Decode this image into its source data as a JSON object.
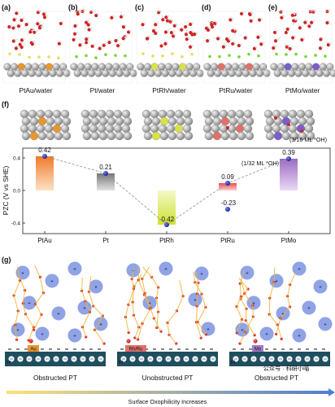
{
  "panels": {
    "a": {
      "letter": "(a)",
      "caption": "PtAu/water"
    },
    "b": {
      "letter": "(b)",
      "caption": "Pt/water"
    },
    "c": {
      "letter": "(c)",
      "caption": "PtRh/water"
    },
    "d": {
      "letter": "(d)",
      "caption": "PtRu/water"
    },
    "e": {
      "letter": "(e)",
      "caption": "PtMo/water"
    },
    "f": {
      "letter": "(f)"
    },
    "g": {
      "letter": "(g)"
    }
  },
  "chart_data": {
    "type": "bar",
    "categories": [
      "PtAu",
      "Pt",
      "PtRh",
      "PtRu",
      "PtMo"
    ],
    "values": [
      0.42,
      0.21,
      -0.42,
      0.09,
      0.39
    ],
    "value_labels": [
      "0.42",
      "0.21",
      "-0.42",
      "0.09",
      "0.39"
    ],
    "extra_point": {
      "category": "PtRu",
      "value": -0.23,
      "label": "-0.23"
    },
    "annotations": [
      "(1/32 ML *OH)",
      "(3/16 ML *OH)"
    ],
    "ylabel": "PZC (V vs SHE)",
    "yticks": [
      "0.4",
      "0.0",
      "-0.4"
    ],
    "ylim": [
      -0.5,
      0.5
    ],
    "colors": [
      "#f08a3a",
      "#8e8e8e",
      "#d9e64a",
      "#ee5a5a",
      "#a47bc4"
    ]
  },
  "g_panel": {
    "metal_labels": [
      "Au",
      "Rh/Ru",
      "Mo"
    ],
    "pt_label": "Pt",
    "plus": "+",
    "captions": [
      "Obstructed PT",
      "Unobstructed PT",
      "Obstructed PT"
    ],
    "axis_label": "Surface Oxophilicity Increases"
  },
  "watermark": "公众号 · 科研小喵",
  "colors": {
    "slab": "#1f4e5f",
    "cation": "#8fa3e6",
    "hbond": "#f3b53a",
    "oxygen": "#d42a2a"
  }
}
